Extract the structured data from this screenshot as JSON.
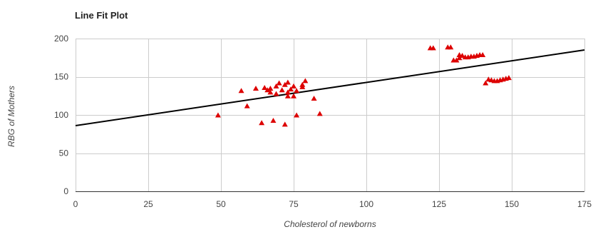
{
  "chart_data": {
    "type": "scatter",
    "title": "Line Fit Plot",
    "xlabel": "Cholesterol of newborns",
    "ylabel": "RBG of Mothers",
    "xlim": [
      0,
      175
    ],
    "ylim": [
      0,
      200
    ],
    "xticks": [
      "0",
      "25",
      "50",
      "75",
      "100",
      "125",
      "150",
      "175"
    ],
    "yticks": [
      "0",
      "50",
      "100",
      "150",
      "200"
    ],
    "grid": true,
    "legend": "none",
    "series": [
      {
        "marker": "triangle",
        "color": "#dd0000",
        "points": [
          [
            49,
            100
          ],
          [
            57,
            132
          ],
          [
            59,
            112
          ],
          [
            62,
            135
          ],
          [
            64,
            90
          ],
          [
            65,
            136
          ],
          [
            66,
            133
          ],
          [
            67,
            130
          ],
          [
            67,
            135
          ],
          [
            68,
            93
          ],
          [
            69,
            128
          ],
          [
            69,
            138
          ],
          [
            70,
            142
          ],
          [
            71,
            133
          ],
          [
            72,
            88
          ],
          [
            72,
            140
          ],
          [
            73,
            143
          ],
          [
            73,
            125
          ],
          [
            73,
            130
          ],
          [
            74,
            134
          ],
          [
            75,
            125
          ],
          [
            75,
            138
          ],
          [
            76,
            100
          ],
          [
            76,
            132
          ],
          [
            78,
            137
          ],
          [
            78,
            140
          ],
          [
            79,
            145
          ],
          [
            82,
            122
          ],
          [
            84,
            102
          ],
          [
            122,
            188
          ],
          [
            123,
            188
          ],
          [
            128,
            189
          ],
          [
            129,
            189
          ],
          [
            130,
            172
          ],
          [
            131,
            172
          ],
          [
            132,
            175
          ],
          [
            132,
            179
          ],
          [
            133,
            178
          ],
          [
            134,
            176
          ],
          [
            135,
            176
          ],
          [
            136,
            177
          ],
          [
            137,
            177
          ],
          [
            138,
            178
          ],
          [
            139,
            179
          ],
          [
            140,
            179
          ],
          [
            141,
            142
          ],
          [
            142,
            147
          ],
          [
            143,
            146
          ],
          [
            144,
            145
          ],
          [
            145,
            145
          ],
          [
            146,
            146
          ],
          [
            147,
            147
          ],
          [
            148,
            148
          ],
          [
            149,
            149
          ]
        ]
      },
      {
        "type": "line",
        "color": "#000000",
        "points": [
          [
            0,
            86
          ],
          [
            175,
            185
          ]
        ]
      }
    ]
  }
}
